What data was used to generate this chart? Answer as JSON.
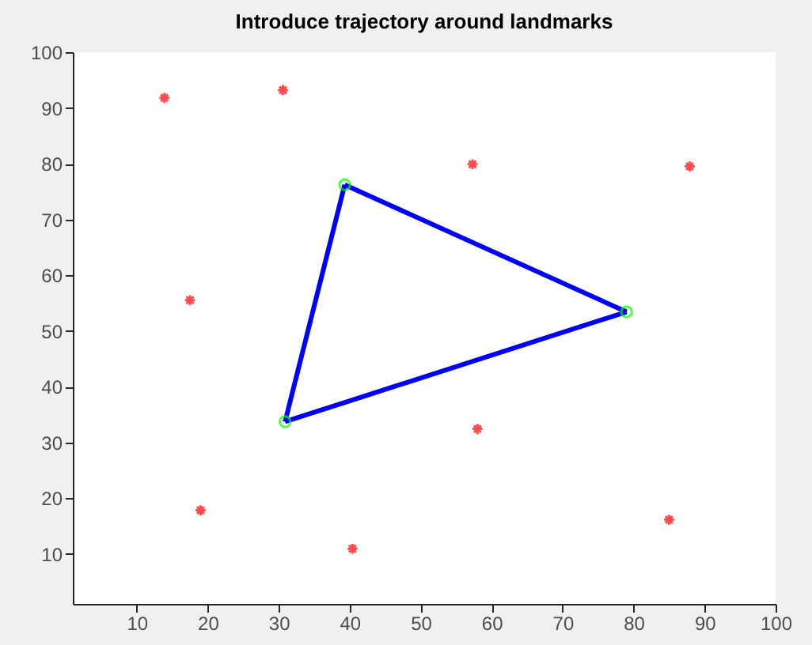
{
  "chart_data": {
    "type": "scatter",
    "title": "Introduce trajectory around landmarks",
    "xlim": [
      1,
      100
    ],
    "ylim": [
      1,
      100
    ],
    "xticks": [
      10,
      20,
      30,
      40,
      50,
      60,
      70,
      80,
      90,
      100
    ],
    "yticks": [
      10,
      20,
      30,
      40,
      50,
      60,
      70,
      80,
      90,
      100
    ],
    "grid": false,
    "series": [
      {
        "marker": "cross",
        "color": "#ff0000",
        "x": [
          13.9,
          30.6,
          57.3,
          87.9,
          17.5,
          19.0,
          40.4,
          58.0,
          85.0
        ],
        "values": [
          91.8,
          93.2,
          79.9,
          79.5,
          55.5,
          17.8,
          10.9,
          32.4,
          16.1
        ]
      },
      {
        "type": "line",
        "line_style": "solid",
        "color": "#0000ff",
        "x": [
          30.9,
          39.3
        ],
        "values": [
          33.7,
          76.2
        ]
      },
      {
        "type": "line",
        "line_style": "solid",
        "color": "#0000ff",
        "x": [
          39.3,
          79.0
        ],
        "values": [
          76.2,
          53.4
        ]
      },
      {
        "type": "line",
        "line_style": "solid",
        "color": "#0000ff",
        "x": [
          30.9,
          79.0
        ],
        "values": [
          33.7,
          53.4
        ]
      },
      {
        "marker": "circle",
        "color": "#00ff00",
        "x": [
          30.9,
          39.3,
          79.0
        ],
        "values": [
          33.7,
          76.2,
          53.4
        ]
      }
    ]
  }
}
